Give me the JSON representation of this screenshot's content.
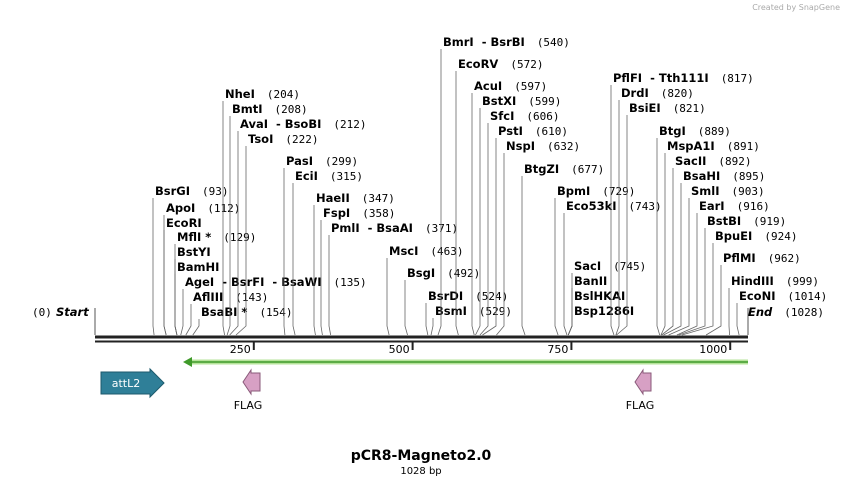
{
  "header": {
    "watermark": "Created by SnapGene"
  },
  "map": {
    "title": "pCR8-Magneto2.0",
    "length": "1028 bp",
    "start": {
      "position": "(0)",
      "label": "Start"
    },
    "end": {
      "label": "End",
      "position": "(1028)"
    },
    "ticks": [
      250,
      500,
      750,
      1000
    ],
    "sites": [
      {
        "name": "BsrGI",
        "position": "(93)"
      },
      {
        "name": "ApoI",
        "position": "(112)"
      },
      {
        "name": "EcoRI",
        "position": null
      },
      {
        "name": "MflI *",
        "position": "(129)"
      },
      {
        "name": "BstYI",
        "position": null
      },
      {
        "name": "BamHI",
        "position": null
      },
      {
        "name": "AgeI  - BsrFI  - BsaWI",
        "position": "(135)"
      },
      {
        "name": "AflIII",
        "position": "(143)"
      },
      {
        "name": "BsaBI *",
        "position": "(154)"
      },
      {
        "name": "NheI",
        "position": "(204)"
      },
      {
        "name": "BmtI",
        "position": "(208)"
      },
      {
        "name": "AvaI  - BsoBI",
        "position": "(212)"
      },
      {
        "name": "TsoI",
        "position": "(222)"
      },
      {
        "name": "PasI",
        "position": "(299)"
      },
      {
        "name": "EciI",
        "position": "(315)"
      },
      {
        "name": "HaeII",
        "position": "(347)"
      },
      {
        "name": "FspI",
        "position": "(358)"
      },
      {
        "name": "PmlI  - BsaAI",
        "position": "(371)"
      },
      {
        "name": "MscI",
        "position": "(463)"
      },
      {
        "name": "BsgI",
        "position": "(492)"
      },
      {
        "name": "BsrDI",
        "position": "(524)"
      },
      {
        "name": "BsmI",
        "position": "(529)"
      },
      {
        "name": "BmrI  - BsrBI",
        "position": "(540)"
      },
      {
        "name": "EcoRV",
        "position": "(572)"
      },
      {
        "name": "AcuI",
        "position": "(597)"
      },
      {
        "name": "BstXI",
        "position": "(599)"
      },
      {
        "name": "SfcI",
        "position": "(606)"
      },
      {
        "name": "PstI",
        "position": "(610)"
      },
      {
        "name": "NspI",
        "position": "(632)"
      },
      {
        "name": "BtgZI",
        "position": "(677)"
      },
      {
        "name": "BpmI",
        "position": "(729)"
      },
      {
        "name": "Eco53kI",
        "position": "(743)"
      },
      {
        "name": "SacI",
        "position": "(745)"
      },
      {
        "name": "BanII",
        "position": null
      },
      {
        "name": "BslHKAI",
        "position": null
      },
      {
        "name": "Bsp1286I",
        "position": null
      },
      {
        "name": "PflFI  - Tth111I",
        "position": "(817)"
      },
      {
        "name": "DrdI",
        "position": "(820)"
      },
      {
        "name": "BsiEI",
        "position": "(821)"
      },
      {
        "name": "BtgI",
        "position": "(889)"
      },
      {
        "name": "MspA1I",
        "position": "(891)"
      },
      {
        "name": "SacII",
        "position": "(892)"
      },
      {
        "name": "BsaHI",
        "position": "(895)"
      },
      {
        "name": "SmlI",
        "position": "(903)"
      },
      {
        "name": "EarI",
        "position": "(916)"
      },
      {
        "name": "BstBI",
        "position": "(919)"
      },
      {
        "name": "BpuEI",
        "position": "(924)"
      },
      {
        "name": "PflMI",
        "position": "(962)"
      },
      {
        "name": "HindIII",
        "position": "(999)"
      },
      {
        "name": "EcoNI",
        "position": "(1014)"
      }
    ],
    "features": [
      {
        "label": "attL2"
      },
      {
        "label": "FLAG"
      },
      {
        "label": "FLAG"
      }
    ]
  }
}
